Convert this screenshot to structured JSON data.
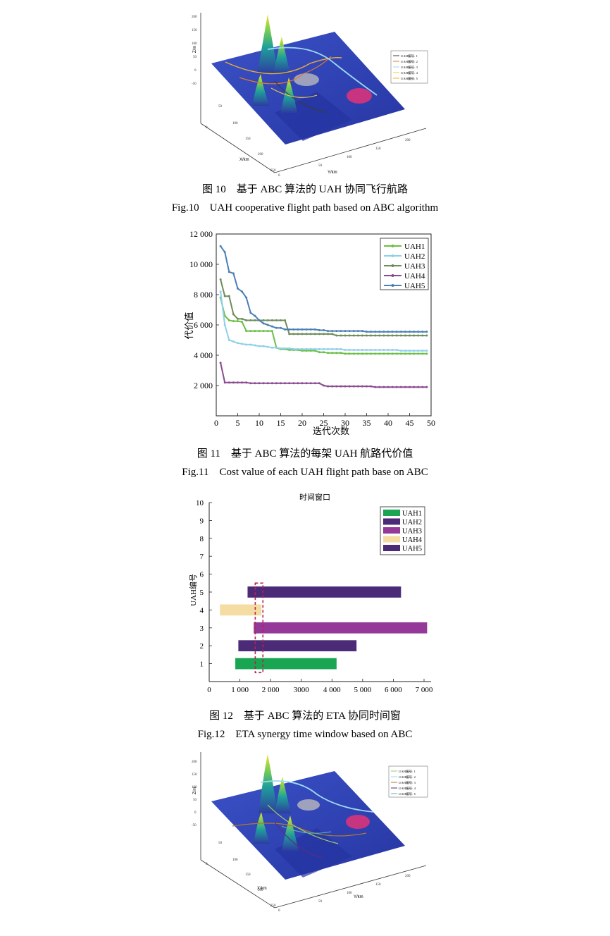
{
  "fig10": {
    "axis_z_label": "Z/m",
    "axis_x_label": "X/km",
    "axis_y_label": "Y/km",
    "z_ticks": [
      "200",
      "150",
      "100",
      "50",
      "0",
      "-50"
    ],
    "x_ticks": [
      "0",
      "50",
      "100",
      "150",
      "200",
      "250"
    ],
    "y_ticks": [
      "0",
      "50",
      "100",
      "150",
      "200"
    ],
    "legend": [
      {
        "label": "UAH编号: 1",
        "color": "#3b3b3b"
      },
      {
        "label": "UAH编号: 2",
        "color": "#e07a2b"
      },
      {
        "label": "UAH编号: 3",
        "color": "#9ed9f2"
      },
      {
        "label": "UAH编号: 4",
        "color": "#f2c84b"
      },
      {
        "label": "UAH编号: 5",
        "color": "#e8ad3c"
      }
    ],
    "caption_cn": "图 10　基于 ABC 算法的 UAH 协同飞行航路",
    "caption_en": "Fig.10　UAH cooperative flight path based on ABC algorithm"
  },
  "fig11": {
    "caption_cn": "图 11　基于 ABC 算法的每架 UAH 航路代价值",
    "caption_en": "Fig.11　Cost value of each UAH flight path base on ABC",
    "chart_data": {
      "type": "line",
      "xlabel": "迭代次数",
      "ylabel": "代价值",
      "xlim": [
        0,
        50
      ],
      "ylim": [
        0,
        12000
      ],
      "x_ticks": [
        "0",
        "5",
        "10",
        "15",
        "20",
        "25",
        "30",
        "35",
        "40",
        "45",
        "50"
      ],
      "y_ticks": [
        "2 000",
        "4 000",
        "6 000",
        "8 000",
        "10 000",
        "12 000"
      ],
      "x": [
        1,
        2,
        3,
        4,
        5,
        6,
        7,
        8,
        9,
        10,
        11,
        12,
        13,
        14,
        15,
        16,
        17,
        18,
        19,
        20,
        21,
        22,
        23,
        24,
        25,
        26,
        27,
        28,
        29,
        30,
        31,
        32,
        33,
        34,
        35,
        36,
        37,
        38,
        39,
        40,
        41,
        42,
        43,
        44,
        45,
        46,
        47,
        48,
        49
      ],
      "legend_position": "top-right",
      "series": [
        {
          "name": "UAH1",
          "color": "#6abf45",
          "values": [
            7800,
            6600,
            6300,
            6250,
            6250,
            6200,
            5600,
            5600,
            5600,
            5600,
            5600,
            5600,
            5600,
            4500,
            4400,
            4400,
            4350,
            4350,
            4350,
            4300,
            4300,
            4300,
            4300,
            4200,
            4200,
            4150,
            4150,
            4150,
            4150,
            4100,
            4100,
            4100,
            4100,
            4100,
            4100,
            4100,
            4100,
            4100,
            4100,
            4100,
            4100,
            4100,
            4100,
            4100,
            4100,
            4100,
            4100,
            4100,
            4100
          ]
        },
        {
          "name": "UAH2",
          "color": "#8fd0ea",
          "values": [
            8200,
            6000,
            5000,
            4900,
            4800,
            4750,
            4700,
            4700,
            4650,
            4600,
            4600,
            4550,
            4500,
            4500,
            4450,
            4450,
            4450,
            4400,
            4400,
            4400,
            4400,
            4400,
            4400,
            4400,
            4400,
            4400,
            4400,
            4400,
            4400,
            4350,
            4350,
            4350,
            4350,
            4350,
            4350,
            4350,
            4350,
            4350,
            4350,
            4350,
            4350,
            4350,
            4300,
            4300,
            4300,
            4300,
            4300,
            4300,
            4300
          ]
        },
        {
          "name": "UAH3",
          "color": "#6e8c5a",
          "values": [
            9000,
            7900,
            7900,
            6700,
            6400,
            6400,
            6300,
            6300,
            6300,
            6300,
            6300,
            6300,
            6300,
            6300,
            6300,
            6300,
            5400,
            5400,
            5400,
            5400,
            5400,
            5400,
            5400,
            5400,
            5400,
            5400,
            5400,
            5300,
            5300,
            5300,
            5300,
            5300,
            5300,
            5300,
            5300,
            5300,
            5300,
            5300,
            5300,
            5300,
            5300,
            5300,
            5300,
            5300,
            5300,
            5300,
            5300,
            5300,
            5300
          ]
        },
        {
          "name": "UAH4",
          "color": "#8a4a8f",
          "values": [
            3500,
            2200,
            2200,
            2200,
            2200,
            2200,
            2200,
            2150,
            2150,
            2150,
            2150,
            2150,
            2150,
            2150,
            2150,
            2150,
            2150,
            2150,
            2150,
            2150,
            2150,
            2150,
            2150,
            2150,
            2000,
            1950,
            1950,
            1950,
            1950,
            1950,
            1950,
            1950,
            1950,
            1950,
            1950,
            1950,
            1900,
            1900,
            1900,
            1900,
            1900,
            1900,
            1900,
            1900,
            1900,
            1900,
            1900,
            1900,
            1900
          ]
        },
        {
          "name": "UAH5",
          "color": "#4b7fb5",
          "values": [
            11200,
            10800,
            9500,
            9400,
            8400,
            8200,
            7800,
            6800,
            6600,
            6300,
            6100,
            6000,
            5900,
            5800,
            5800,
            5700,
            5700,
            5700,
            5700,
            5700,
            5700,
            5700,
            5700,
            5650,
            5650,
            5600,
            5600,
            5600,
            5600,
            5600,
            5600,
            5600,
            5600,
            5600,
            5550,
            5550,
            5550,
            5550,
            5550,
            5550,
            5550,
            5550,
            5550,
            5550,
            5550,
            5550,
            5550,
            5550,
            5550
          ]
        }
      ]
    }
  },
  "fig12": {
    "caption_cn": "图 12　基于 ABC 算法的 ETA 协同时间窗",
    "caption_en": "Fig.12　ETA synergy time window based on ABC",
    "chart_data": {
      "type": "bar",
      "orientation": "horizontal",
      "title": "时间窗口",
      "ylabel": "UAH编号",
      "xlim": [
        0,
        7000
      ],
      "ylim": [
        0,
        10
      ],
      "x_ticks": [
        "0",
        "1 000",
        "2 000",
        "3000",
        "4 000",
        "5 000",
        "6 000",
        "7 000"
      ],
      "y_ticks": [
        "1",
        "2",
        "3",
        "4",
        "5",
        "6",
        "7",
        "8",
        "9",
        "10"
      ],
      "legend_position": "top-right",
      "bars": [
        {
          "name": "UAH1",
          "uah": 1,
          "start": 850,
          "end": 4150,
          "color": "#1aa553"
        },
        {
          "name": "UAH2",
          "uah": 2,
          "start": 950,
          "end": 4800,
          "color": "#4b2a77"
        },
        {
          "name": "UAH3",
          "uah": 3,
          "start": 1450,
          "end": 7100,
          "color": "#94399a"
        },
        {
          "name": "UAH4",
          "uah": 4,
          "start": 350,
          "end": 1700,
          "color": "#f4dca3"
        },
        {
          "name": "UAH5",
          "uah": 5,
          "start": 1250,
          "end": 6250,
          "color": "#4b2a77"
        }
      ],
      "window": {
        "start": 1500,
        "end": 1750
      }
    }
  },
  "fig13": {
    "axis_z_label": "Z/m",
    "axis_x_label": "X/km",
    "axis_y_label": "Y/km",
    "z_ticks": [
      "200",
      "150",
      "100",
      "50",
      "0",
      "-50"
    ],
    "x_ticks": [
      "0",
      "50",
      "100",
      "150",
      "200",
      "250"
    ],
    "y_ticks": [
      "0",
      "50",
      "100",
      "150",
      "200"
    ],
    "legend": [
      {
        "label": "UAH编号: 1",
        "color": "#9dc86a"
      },
      {
        "label": "UAH编号: 2",
        "color": "#9ed9f2"
      },
      {
        "label": "UAH编号: 3",
        "color": "#b27a2c"
      },
      {
        "label": "UAH编号: 4",
        "color": "#5a2d7d"
      },
      {
        "label": "UAH编号: 5",
        "color": "#58b9b0"
      }
    ]
  }
}
